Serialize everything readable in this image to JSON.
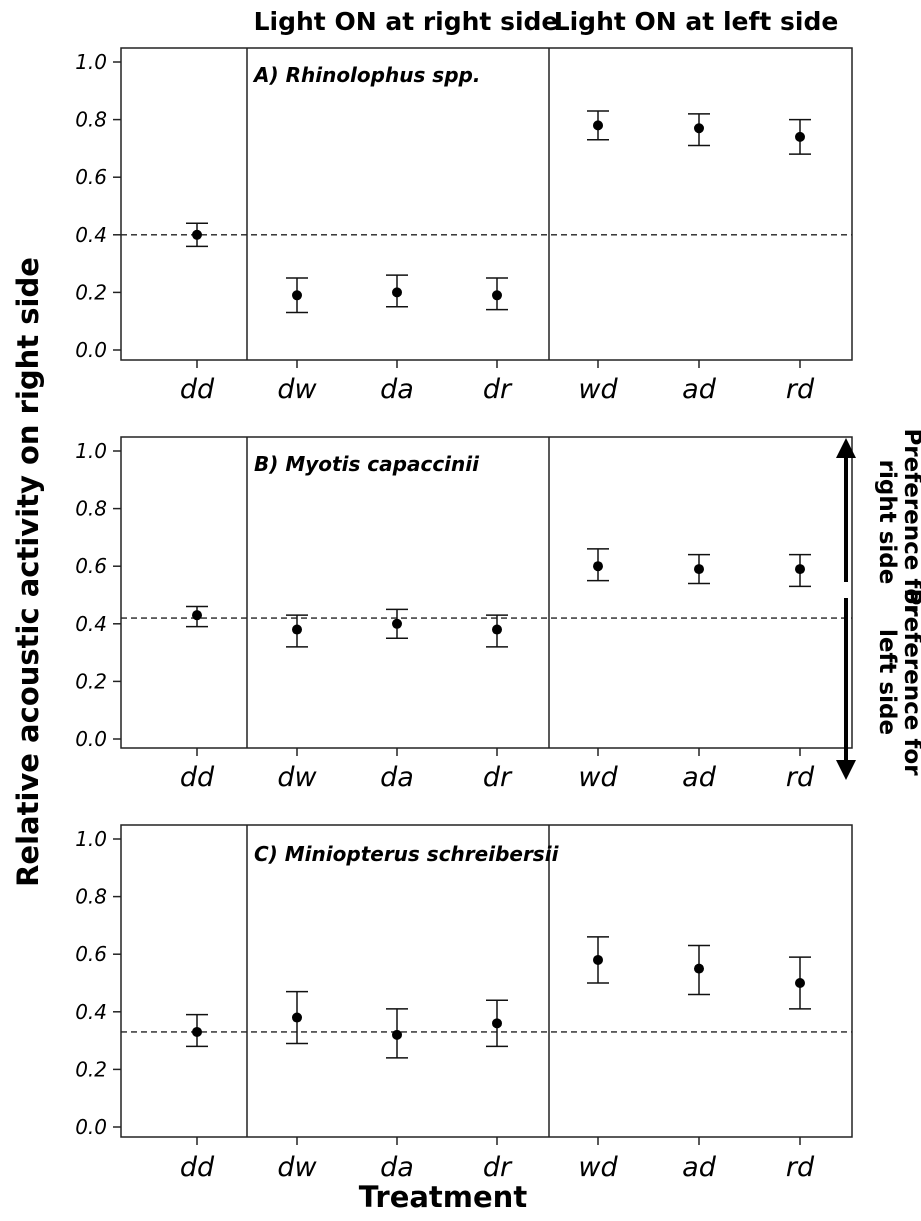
{
  "headers": {
    "right_light": "Light ON at right side",
    "left_light": "Light ON at left side"
  },
  "ylabel": "Relative acoustic activity on right side",
  "xlabel": "Treatment",
  "preference": {
    "right": [
      "Preference for",
      "right side"
    ],
    "left": [
      "Preference for",
      "left side"
    ]
  },
  "chart_data": [
    {
      "type": "scatter",
      "title": "A) Rhinolophus spp.",
      "categories": [
        "dd",
        "dw",
        "da",
        "dr",
        "wd",
        "ad",
        "rd"
      ],
      "values": [
        0.4,
        0.19,
        0.2,
        0.19,
        0.78,
        0.77,
        0.74
      ],
      "error_low": [
        0.36,
        0.13,
        0.15,
        0.14,
        0.73,
        0.71,
        0.68
      ],
      "error_high": [
        0.44,
        0.25,
        0.26,
        0.25,
        0.83,
        0.82,
        0.8
      ],
      "reference_line": 0.4,
      "yticks": [
        "0.0",
        "0.2",
        "0.4",
        "0.6",
        "0.8",
        "1.0"
      ],
      "ylim": [
        0,
        1.0
      ],
      "group_boundaries_after": [
        1,
        4
      ]
    },
    {
      "type": "scatter",
      "title": "B) Myotis capaccinii",
      "categories": [
        "dd",
        "dw",
        "da",
        "dr",
        "wd",
        "ad",
        "rd"
      ],
      "values": [
        0.43,
        0.38,
        0.4,
        0.38,
        0.6,
        0.59,
        0.59
      ],
      "error_low": [
        0.39,
        0.32,
        0.35,
        0.32,
        0.55,
        0.54,
        0.53
      ],
      "error_high": [
        0.46,
        0.43,
        0.45,
        0.43,
        0.66,
        0.64,
        0.64
      ],
      "reference_line": 0.42,
      "yticks": [
        "0.0",
        "0.2",
        "0.4",
        "0.6",
        "0.8",
        "1.0"
      ],
      "ylim": [
        0,
        1.0
      ],
      "group_boundaries_after": [
        1,
        4
      ]
    },
    {
      "type": "scatter",
      "title": "C) Miniopterus schreibersii",
      "categories": [
        "dd",
        "dw",
        "da",
        "dr",
        "wd",
        "ad",
        "rd"
      ],
      "values": [
        0.33,
        0.38,
        0.32,
        0.36,
        0.58,
        0.55,
        0.5
      ],
      "error_low": [
        0.28,
        0.29,
        0.24,
        0.28,
        0.5,
        0.46,
        0.41
      ],
      "error_high": [
        0.39,
        0.47,
        0.41,
        0.44,
        0.66,
        0.63,
        0.59
      ],
      "reference_line": 0.33,
      "yticks": [
        "0.0",
        "0.2",
        "0.4",
        "0.6",
        "0.8",
        "1.0"
      ],
      "ylim": [
        0,
        1.0
      ],
      "group_boundaries_after": [
        1,
        4
      ]
    }
  ]
}
